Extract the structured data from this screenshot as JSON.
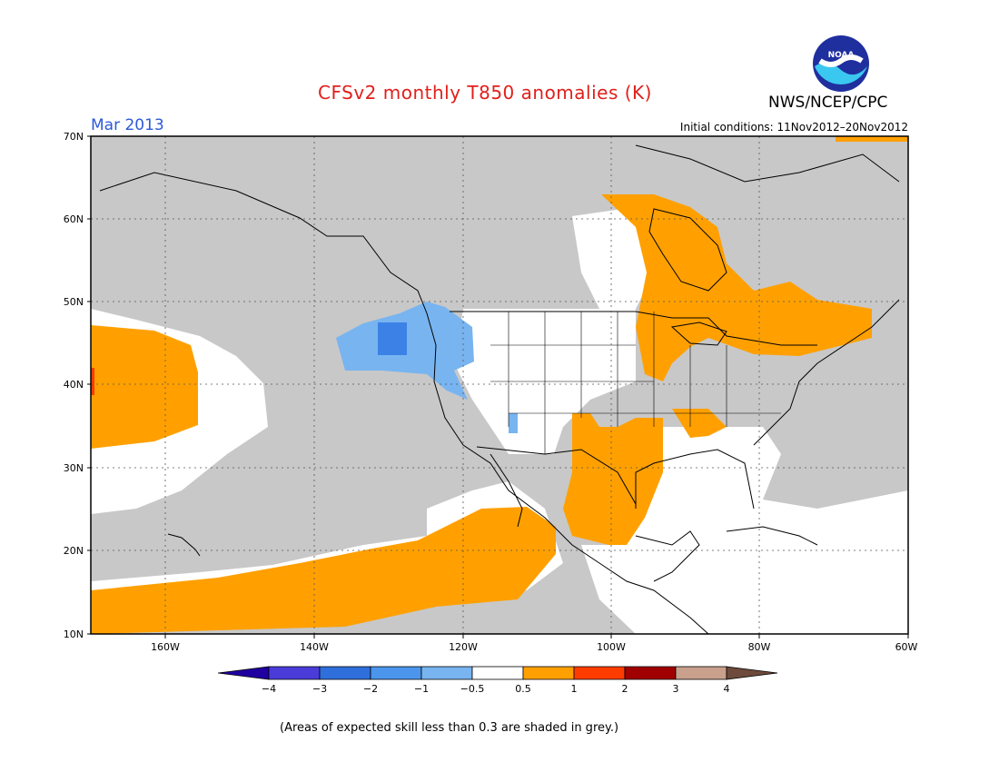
{
  "header": {
    "title": "CFSv2 monthly T850 anomalies (K)",
    "agency": "NWS/NCEP/CPC",
    "logo_text": "NOAA",
    "period": "Mar 2013",
    "initial_conditions": "Initial conditions: 11Nov2012–20Nov2012"
  },
  "map": {
    "lat_labels": [
      "70N",
      "60N",
      "50N",
      "40N",
      "30N",
      "20N",
      "10N"
    ],
    "lon_labels": [
      "160W",
      "140W",
      "120W",
      "100W",
      "80W",
      "60W"
    ],
    "colors": {
      "ocean_grey": "#c8c8c8",
      "positive_anomaly": "#ffa000",
      "negative_anomaly": "#78b4f0",
      "strong_negative": "#3c82e6",
      "no_signal": "#ffffff"
    }
  },
  "colorbar": {
    "labels": [
      "−4",
      "−3",
      "−2",
      "−1",
      "−0.5",
      "0.5",
      "1",
      "2",
      "3",
      "4"
    ],
    "colors": [
      "#2000a0",
      "#4a3cd8",
      "#2f6fdc",
      "#4b96ec",
      "#78b4f0",
      "#ffffff",
      "#ffa000",
      "#ff3c00",
      "#a00000",
      "#c8a08c",
      "#6e4a3c"
    ]
  },
  "footnote": "(Areas of expected skill less than 0.3 are shaded in grey.)"
}
